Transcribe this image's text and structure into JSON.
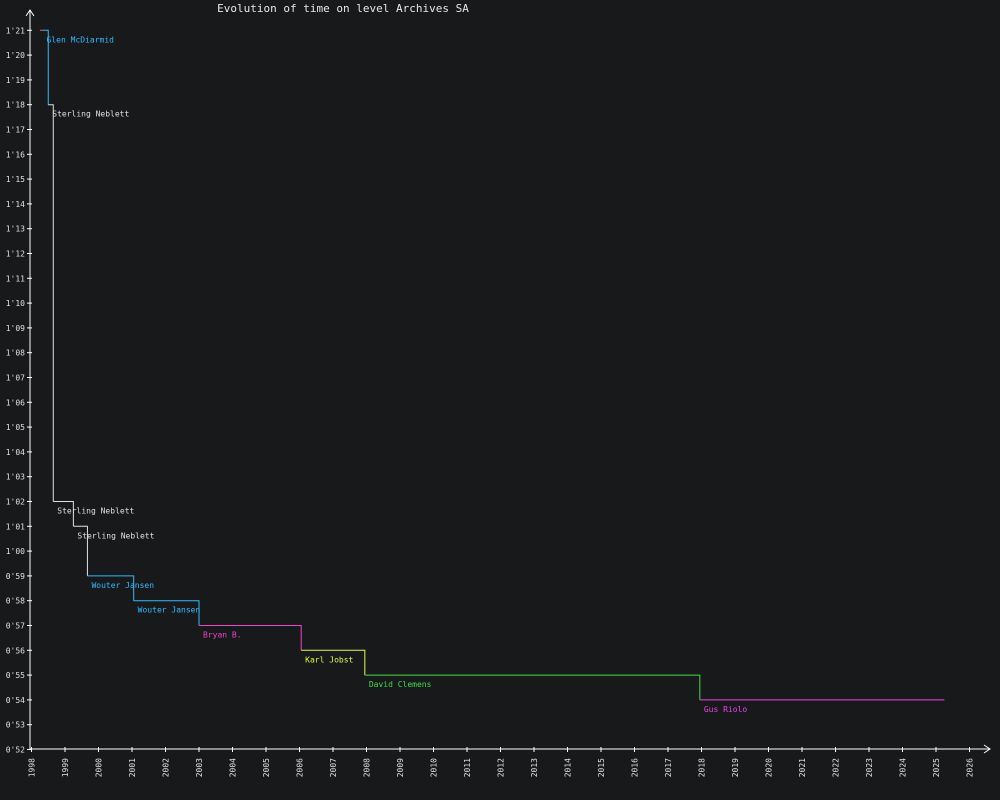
{
  "chart_data": {
    "type": "line",
    "title": "Evolution of time on level Archives SA",
    "xlabel": "",
    "ylabel": "",
    "x_ticks": [
      "1998",
      "1999",
      "2000",
      "2001",
      "2002",
      "2003",
      "2004",
      "2005",
      "2006",
      "2007",
      "2008",
      "2009",
      "2010",
      "2011",
      "2012",
      "2013",
      "2014",
      "2015",
      "2016",
      "2017",
      "2018",
      "2019",
      "2020",
      "2021",
      "2022",
      "2023",
      "2024",
      "2025",
      "2026"
    ],
    "y_ticks": [
      "0'52",
      "0'53",
      "0'54",
      "0'55",
      "0'56",
      "0'57",
      "0'58",
      "0'59",
      "1'00",
      "1'01",
      "1'02",
      "1'03",
      "1'04",
      "1'05",
      "1'06",
      "1'07",
      "1'08",
      "1'09",
      "1'10",
      "1'11",
      "1'12",
      "1'13",
      "1'14",
      "1'15",
      "1'16",
      "1'17",
      "1'18",
      "1'19",
      "1'20",
      "1'21"
    ],
    "xlim": [
      1998,
      2026
    ],
    "ylim_seconds": [
      52,
      81
    ],
    "end_date": 2025.25,
    "records": [
      {
        "holder": "",
        "date": 1998.25,
        "time_seconds": 81,
        "color": "#ff5555"
      },
      {
        "holder": "Glen McDiarmid",
        "date": 1998.33,
        "time_seconds": 81,
        "color": "#33bbff"
      },
      {
        "holder": "Sterling Neblett",
        "date": 1998.5,
        "time_seconds": 78,
        "color": "#e0e0e0"
      },
      {
        "holder": "Sterling Neblett",
        "date": 1998.65,
        "time_seconds": 62,
        "color": "#e0e0e0"
      },
      {
        "holder": "Sterling Neblett",
        "date": 1999.25,
        "time_seconds": 61,
        "color": "#e0e0e0"
      },
      {
        "holder": "Wouter Jansen",
        "date": 1999.67,
        "time_seconds": 59,
        "color": "#33bbff"
      },
      {
        "holder": "Wouter Jansen",
        "date": 2001.05,
        "time_seconds": 58,
        "color": "#33bbff"
      },
      {
        "holder": "Bryan B.",
        "date": 2003.0,
        "time_seconds": 57,
        "color": "#ee44cc"
      },
      {
        "holder": "Karl Jobst",
        "date": 2006.05,
        "time_seconds": 56,
        "color": "#ddff44"
      },
      {
        "holder": "David Clemens",
        "date": 2007.95,
        "time_seconds": 55,
        "color": "#44dd44"
      },
      {
        "holder": "Gus Riolo",
        "date": 2017.95,
        "time_seconds": 54,
        "color": "#ee44ee"
      }
    ]
  }
}
